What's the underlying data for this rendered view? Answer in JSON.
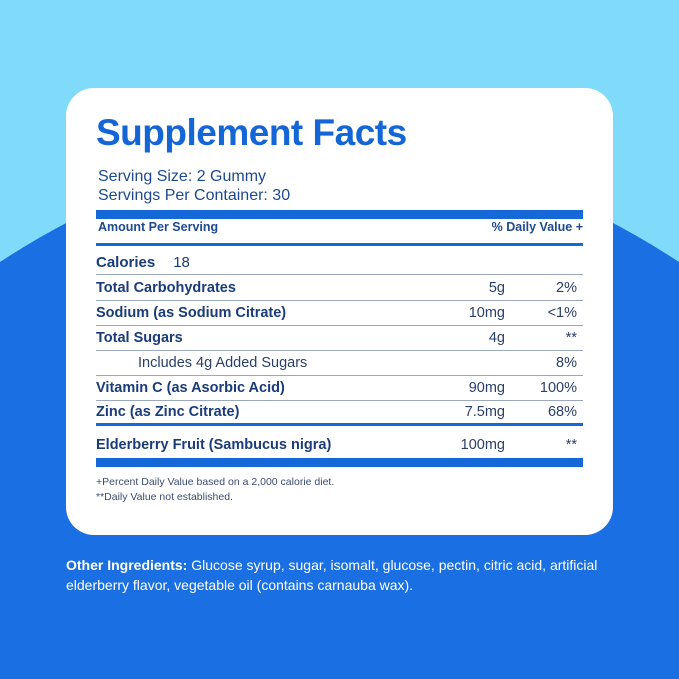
{
  "title": "Supplement Facts",
  "serving_size": "Serving Size: 2 Gummy",
  "servings_per_container": "Servings Per Container: 30",
  "header": {
    "amount": "Amount Per Serving",
    "dv": "% Daily Value +"
  },
  "calories": {
    "label": "Calories",
    "value": "18"
  },
  "rows": [
    {
      "name": "Total Carbohydrates",
      "amount": "5g",
      "dv": "2%"
    },
    {
      "name": "Sodium (as Sodium Citrate)",
      "amount": "10mg",
      "dv": "<1%"
    },
    {
      "name": "Total Sugars",
      "amount": "4g",
      "dv": "**"
    },
    {
      "name": "Includes 4g Added Sugars",
      "amount": "",
      "dv": "8%"
    },
    {
      "name": "Vitamin C (as Asorbic Acid)",
      "amount": "90mg",
      "dv": "100%"
    },
    {
      "name": "Zinc (as Zinc Citrate)",
      "amount": "7.5mg",
      "dv": "68%"
    },
    {
      "name": "Elderberry Fruit (Sambucus nigra)",
      "amount": "100mg",
      "dv": "**"
    }
  ],
  "footnotes": [
    "+Percent Daily Value based on a 2,000 calorie diet.",
    "**Daily Value not established."
  ],
  "other_ingredients": {
    "label": "Other Ingredients:",
    "text": " Glucose syrup, sugar, isomalt, glucose, pectin, citric acid, artificial elderberry flavor, vegetable oil (contains carnauba wax)."
  },
  "colors": {
    "sky": "#80dbfb",
    "blue": "#1a6fe2",
    "heading": "#1466d6"
  }
}
